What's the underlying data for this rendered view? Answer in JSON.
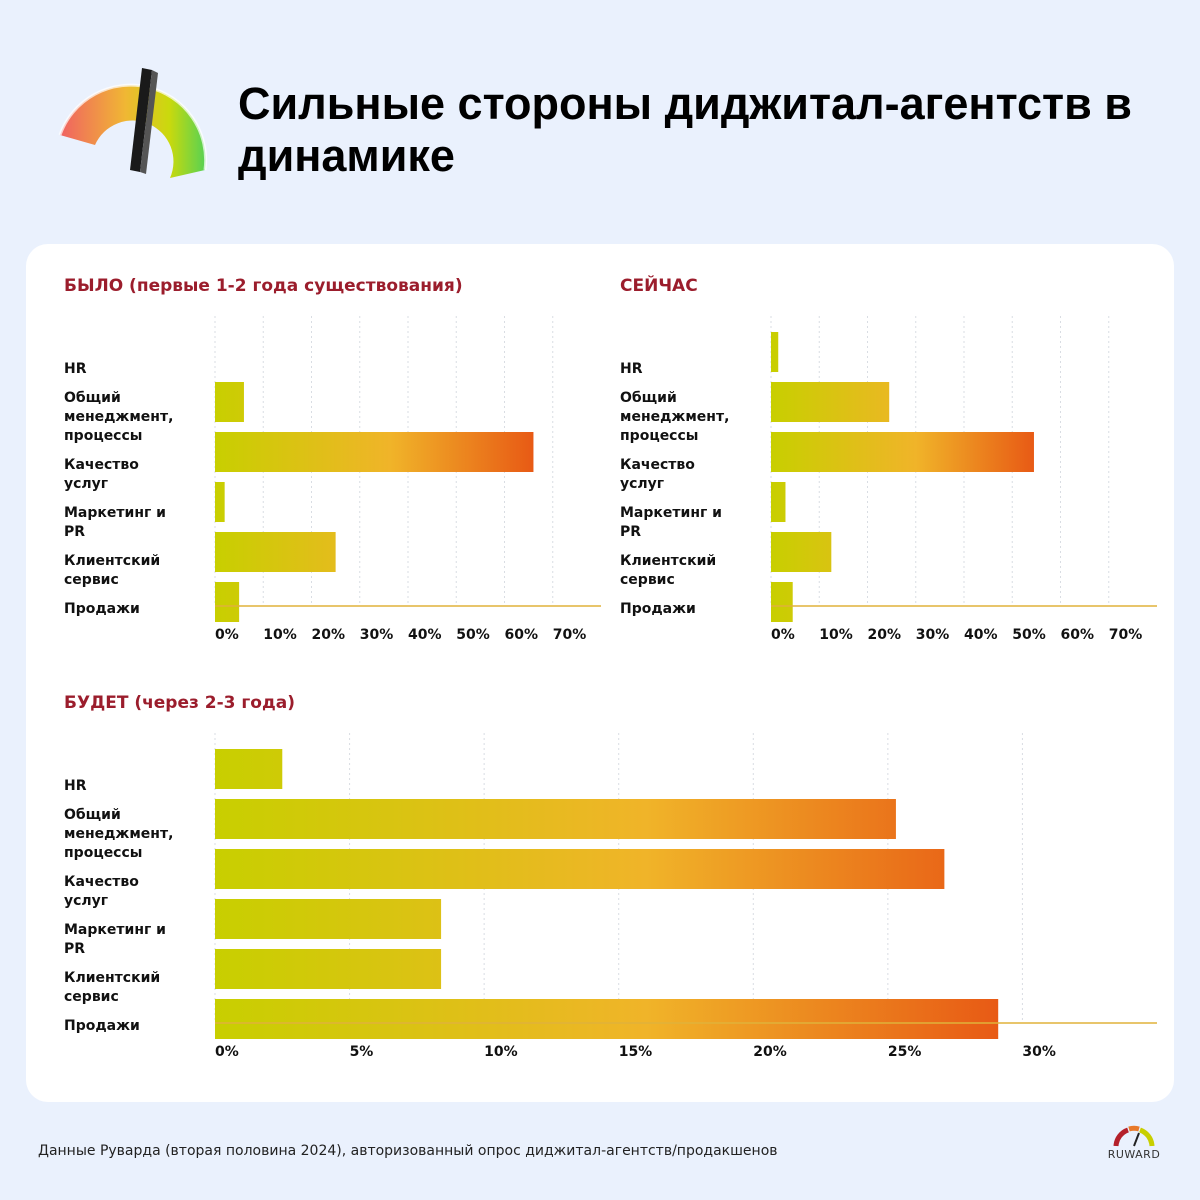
{
  "header": {
    "title": "Сильные стороны диджитал-агентств в динамике"
  },
  "footer": {
    "note": "Данные Руварда (вторая половина 2024), авторизованный опрос диджитал-агентств/продакшенов",
    "brand": "RUWARD"
  },
  "colors": {
    "title_accent": "#9b1d2c",
    "bar_start": "#c8cf00",
    "bar_mid": "#f0b429",
    "bar_end": "#e85a15",
    "background": "#eaf1fd"
  },
  "chart_data": [
    {
      "type": "bar",
      "orientation": "horizontal",
      "title": "БЫЛО (первые 1-2 года существования)",
      "categories": [
        "HR",
        "Общий менеджмент, процессы",
        "Качество услуг",
        "Маркетинг и PR",
        "Клиентский сервис",
        "Продажи"
      ],
      "values": [
        0,
        6,
        66,
        2,
        25,
        5
      ],
      "xlim": [
        0,
        80
      ],
      "ticks": [
        "0%",
        "10%",
        "20%",
        "30%",
        "40%",
        "50%",
        "60%",
        "70%"
      ],
      "tick_values": [
        0,
        10,
        20,
        30,
        40,
        50,
        60,
        70
      ],
      "grid": true
    },
    {
      "type": "bar",
      "orientation": "horizontal",
      "title": "СЕЙЧАС",
      "categories": [
        "HR",
        "Общий менеджмент, процессы",
        "Качество услуг",
        "Маркетинг и PR",
        "Клиентский сервис",
        "Продажи"
      ],
      "values": [
        1.5,
        24.5,
        54.5,
        3,
        12.5,
        4.5
      ],
      "xlim": [
        0,
        80
      ],
      "ticks": [
        "0%",
        "10%",
        "20%",
        "30%",
        "40%",
        "50%",
        "60%",
        "70%"
      ],
      "tick_values": [
        0,
        10,
        20,
        30,
        40,
        50,
        60,
        70
      ],
      "grid": true
    },
    {
      "type": "bar",
      "orientation": "horizontal",
      "title": "БУДЕТ (через 2-3 года)",
      "categories": [
        "HR",
        "Общий менеджмент, процессы",
        "Качество услуг",
        "Маркетинг и PR",
        "Клиентский сервис",
        "Продажи"
      ],
      "values": [
        2.5,
        25.3,
        27.1,
        8.4,
        8.4,
        29.1
      ],
      "xlim": [
        0,
        35
      ],
      "ticks": [
        "0%",
        "5%",
        "10%",
        "15%",
        "20%",
        "25%",
        "30%"
      ],
      "tick_values": [
        0,
        5,
        10,
        15,
        20,
        25,
        30
      ],
      "grid": true
    }
  ]
}
